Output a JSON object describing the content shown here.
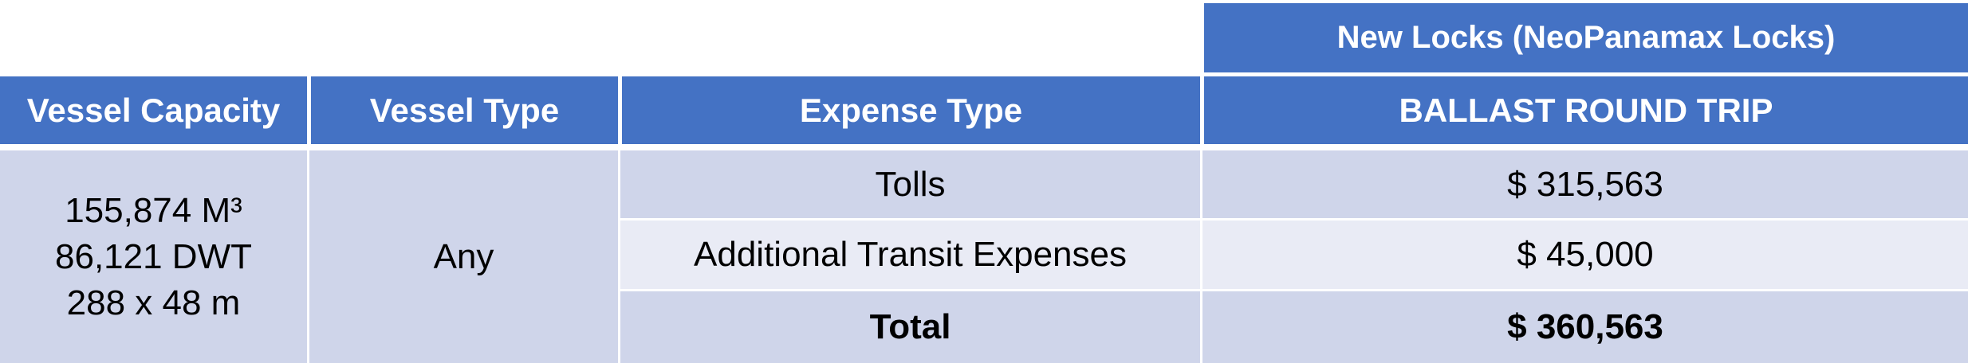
{
  "table": {
    "group_header": "New Locks (NeoPanamax Locks)",
    "headers": [
      "Vessel Capacity",
      "Vessel Type",
      "Expense Type",
      "BALLAST ROUND TRIP"
    ],
    "vessel_capacity": [
      "155,874 M³",
      "86,121 DWT",
      "288 x 48 m"
    ],
    "vessel_type": "Any",
    "rows": [
      {
        "expense": "Tolls",
        "amount": "$ 315,563"
      },
      {
        "expense": "Additional Transit Expenses",
        "amount": "$ 45,000"
      },
      {
        "expense": "Total",
        "amount": "$ 360,563"
      }
    ]
  },
  "colors": {
    "header": "#4472c4",
    "row_dark": "#cfd5ea",
    "row_light": "#e9ebf5"
  }
}
